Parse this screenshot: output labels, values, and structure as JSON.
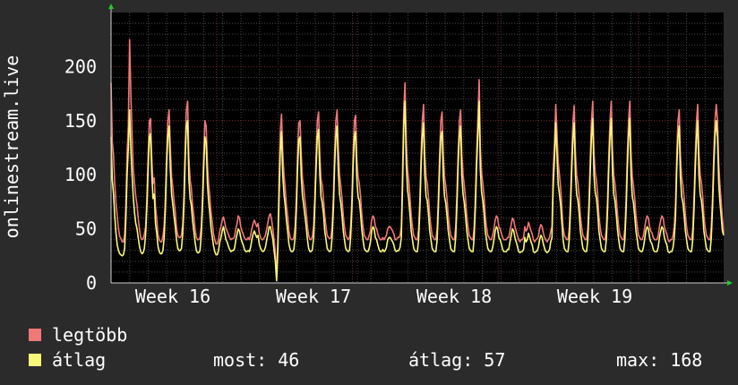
{
  "chart_data": {
    "type": "line",
    "ylabel": "onlinestream.live",
    "ylim": [
      0,
      250
    ],
    "yticks": [
      "0",
      "50",
      "100",
      "150",
      "200"
    ],
    "xticks": [
      "Week 16",
      "Week 17",
      "Week 18",
      "Week 19"
    ],
    "grid": true,
    "series": [
      {
        "name": "legtöbb",
        "color": "#f07878",
        "values": [
          185,
          130,
          118,
          92,
          74,
          62,
          50,
          43,
          41,
          38,
          38,
          45,
          72,
          120,
          146,
          225,
          175,
          140,
          106,
          92,
          80,
          72,
          60,
          50,
          42,
          40,
          41,
          45,
          52,
          78,
          118,
          150,
          152,
          115,
          92,
          97,
          70,
          60,
          45,
          40,
          38,
          38,
          43,
          53,
          80,
          120,
          150,
          160,
          125,
          98,
          88,
          76,
          66,
          51,
          44,
          42,
          42,
          44,
          54,
          82,
          125,
          160,
          168,
          115,
          95,
          88,
          72,
          62,
          50,
          42,
          40,
          40,
          42,
          52,
          78,
          118,
          150,
          145,
          110,
          92,
          80,
          65,
          55,
          45,
          40,
          36,
          36,
          40,
          48,
          52,
          58,
          61,
          56,
          50,
          48,
          45,
          42,
          40,
          41,
          41,
          43,
          50,
          55,
          62,
          60,
          52,
          48,
          45,
          42,
          40,
          40,
          42,
          40,
          44,
          50,
          55,
          58,
          55,
          52,
          55,
          46,
          42,
          40,
          40,
          42,
          44,
          50,
          56,
          62,
          64,
          58,
          50,
          40,
          28,
          5,
          40,
          90,
          140,
          156,
          120,
          100,
          88,
          72,
          62,
          48,
          42,
          40,
          40,
          42,
          52,
          78,
          118,
          148,
          150,
          118,
          96,
          88,
          76,
          66,
          52,
          44,
          40,
          40,
          43,
          53,
          80,
          118,
          150,
          158,
          118,
          96,
          90,
          78,
          62,
          52,
          44,
          42,
          41,
          42,
          52,
          78,
          120,
          150,
          160,
          125,
          100,
          90,
          78,
          62,
          52,
          44,
          42,
          40,
          42,
          52,
          78,
          120,
          150,
          155,
          115,
          98,
          92,
          80,
          64,
          52,
          44,
          42,
          40,
          40,
          44,
          48,
          58,
          62,
          60,
          52,
          50,
          45,
          42,
          40,
          40,
          42,
          40,
          42,
          44,
          50,
          52,
          52,
          50,
          48,
          45,
          40,
          40,
          42,
          42,
          44,
          52,
          105,
          160,
          185,
          130,
          105,
          95,
          80,
          62,
          52,
          44,
          42,
          40,
          40,
          50,
          78,
          118,
          150,
          165,
          118,
          98,
          92,
          80,
          62,
          52,
          44,
          42,
          40,
          40,
          50,
          78,
          118,
          150,
          158,
          118,
          98,
          90,
          78,
          62,
          52,
          44,
          42,
          40,
          40,
          52,
          80,
          120,
          150,
          160,
          120,
          100,
          90,
          78,
          62,
          52,
          44,
          42,
          40,
          40,
          52,
          80,
          122,
          152,
          188,
          125,
          102,
          92,
          80,
          62,
          52,
          44,
          42,
          40,
          40,
          44,
          50,
          58,
          62,
          60,
          52,
          50,
          46,
          42,
          40,
          40,
          40,
          42,
          42,
          48,
          54,
          60,
          58,
          52,
          48,
          44,
          40,
          38,
          40,
          40,
          42,
          52,
          48,
          50,
          56,
          52,
          48,
          45,
          40,
          38,
          40,
          41,
          43,
          50,
          54,
          52,
          46,
          42,
          40,
          38,
          40,
          42,
          48,
          52,
          105,
          130,
          165,
          140,
          112,
          100,
          88,
          70,
          52,
          44,
          42,
          40,
          40,
          50,
          78,
          118,
          150,
          164,
          120,
          100,
          92,
          80,
          62,
          52,
          44,
          42,
          40,
          40,
          50,
          78,
          118,
          150,
          168,
          120,
          102,
          94,
          82,
          62,
          52,
          44,
          42,
          40,
          40,
          50,
          78,
          120,
          150,
          168,
          122,
          100,
          92,
          80,
          64,
          52,
          44,
          42,
          40,
          40,
          50,
          78,
          118,
          150,
          168,
          120,
          98,
          90,
          78,
          62,
          52,
          44,
          42,
          40,
          40,
          44,
          50,
          58,
          62,
          60,
          52,
          48,
          46,
          42,
          40,
          40,
          40,
          44,
          52,
          58,
          62,
          60,
          52,
          48,
          45,
          40,
          38,
          40,
          40,
          44,
          52,
          72,
          118,
          150,
          160,
          118,
          98,
          90,
          78,
          62,
          52,
          44,
          42,
          40,
          40,
          50,
          78,
          118,
          150,
          165,
          120,
          100,
          92,
          80,
          62,
          52,
          44,
          42,
          40,
          40,
          52,
          80,
          120,
          150,
          165,
          150,
          110,
          90,
          76,
          60,
          46
        ]
      },
      {
        "name": "átlag",
        "color": "#f8f878",
        "values": [
          135,
          95,
          82,
          62,
          46,
          35,
          30,
          27,
          26,
          25,
          26,
          32,
          58,
          100,
          125,
          160,
          125,
          100,
          80,
          65,
          55,
          50,
          42,
          34,
          29,
          27,
          28,
          32,
          45,
          70,
          105,
          135,
          138,
          100,
          78,
          82,
          55,
          46,
          34,
          29,
          27,
          27,
          30,
          42,
          70,
          110,
          135,
          145,
          105,
          82,
          72,
          62,
          52,
          40,
          32,
          30,
          30,
          32,
          45,
          72,
          112,
          145,
          150,
          96,
          78,
          72,
          58,
          48,
          38,
          30,
          28,
          28,
          30,
          44,
          68,
          105,
          135,
          130,
          92,
          76,
          64,
          50,
          42,
          34,
          29,
          26,
          26,
          30,
          38,
          42,
          48,
          52,
          46,
          40,
          38,
          34,
          31,
          29,
          30,
          30,
          32,
          40,
          45,
          50,
          48,
          42,
          38,
          35,
          31,
          29,
          29,
          30,
          29,
          33,
          40,
          45,
          48,
          45,
          42,
          44,
          36,
          32,
          30,
          29,
          30,
          33,
          40,
          45,
          52,
          52,
          46,
          40,
          30,
          20,
          2,
          30,
          75,
          120,
          140,
          100,
          82,
          72,
          58,
          48,
          36,
          31,
          29,
          29,
          31,
          42,
          68,
          105,
          132,
          135,
          98,
          80,
          72,
          62,
          52,
          40,
          32,
          29,
          29,
          31,
          42,
          70,
          105,
          135,
          142,
          100,
          80,
          74,
          64,
          48,
          40,
          32,
          30,
          29,
          30,
          42,
          68,
          108,
          135,
          145,
          105,
          82,
          74,
          62,
          48,
          40,
          32,
          30,
          29,
          30,
          42,
          68,
          108,
          135,
          140,
          96,
          80,
          76,
          64,
          50,
          40,
          32,
          30,
          29,
          29,
          32,
          38,
          48,
          52,
          50,
          42,
          40,
          35,
          31,
          29,
          29,
          31,
          29,
          30,
          33,
          40,
          42,
          42,
          40,
          38,
          35,
          30,
          29,
          30,
          30,
          33,
          42,
          90,
          145,
          168,
          110,
          86,
          78,
          64,
          48,
          40,
          32,
          30,
          29,
          29,
          40,
          68,
          105,
          135,
          148,
          100,
          80,
          76,
          64,
          48,
          40,
          32,
          30,
          29,
          29,
          40,
          68,
          105,
          135,
          140,
          98,
          80,
          74,
          62,
          48,
          40,
          32,
          30,
          29,
          29,
          42,
          70,
          108,
          135,
          145,
          100,
          82,
          74,
          62,
          48,
          40,
          32,
          30,
          29,
          29,
          42,
          70,
          110,
          138,
          168,
          105,
          84,
          76,
          64,
          48,
          40,
          32,
          30,
          29,
          29,
          33,
          40,
          48,
          52,
          50,
          42,
          40,
          36,
          31,
          29,
          29,
          29,
          31,
          31,
          38,
          44,
          50,
          48,
          42,
          38,
          34,
          29,
          28,
          29,
          29,
          31,
          42,
          38,
          40,
          46,
          42,
          38,
          35,
          29,
          28,
          29,
          30,
          33,
          40,
          44,
          42,
          36,
          32,
          29,
          28,
          29,
          31,
          38,
          42,
          90,
          115,
          148,
          120,
          92,
          82,
          72,
          56,
          40,
          32,
          30,
          29,
          29,
          40,
          68,
          105,
          135,
          148,
          100,
          82,
          76,
          64,
          48,
          40,
          32,
          30,
          29,
          29,
          40,
          68,
          105,
          135,
          152,
          100,
          84,
          78,
          66,
          48,
          40,
          32,
          30,
          29,
          29,
          40,
          68,
          108,
          135,
          152,
          102,
          82,
          76,
          64,
          50,
          40,
          32,
          30,
          29,
          29,
          40,
          68,
          105,
          135,
          152,
          100,
          80,
          74,
          62,
          48,
          40,
          32,
          30,
          29,
          29,
          33,
          40,
          48,
          52,
          50,
          42,
          38,
          36,
          31,
          29,
          29,
          29,
          33,
          42,
          48,
          52,
          50,
          42,
          38,
          35,
          29,
          28,
          29,
          29,
          33,
          42,
          60,
          105,
          135,
          145,
          98,
          80,
          74,
          62,
          48,
          40,
          32,
          30,
          29,
          29,
          40,
          68,
          105,
          135,
          150,
          100,
          82,
          76,
          64,
          48,
          40,
          32,
          30,
          29,
          29,
          42,
          70,
          108,
          135,
          150,
          135,
          92,
          74,
          62,
          48,
          44
        ]
      }
    ]
  },
  "legend": {
    "max_label": "legtöbb",
    "avg_label": "átlag",
    "max_color": "#f07878",
    "avg_color": "#f8f878",
    "stats": {
      "current": "most: 46",
      "average": "átlag: 57",
      "maximum": "max: 168"
    }
  }
}
